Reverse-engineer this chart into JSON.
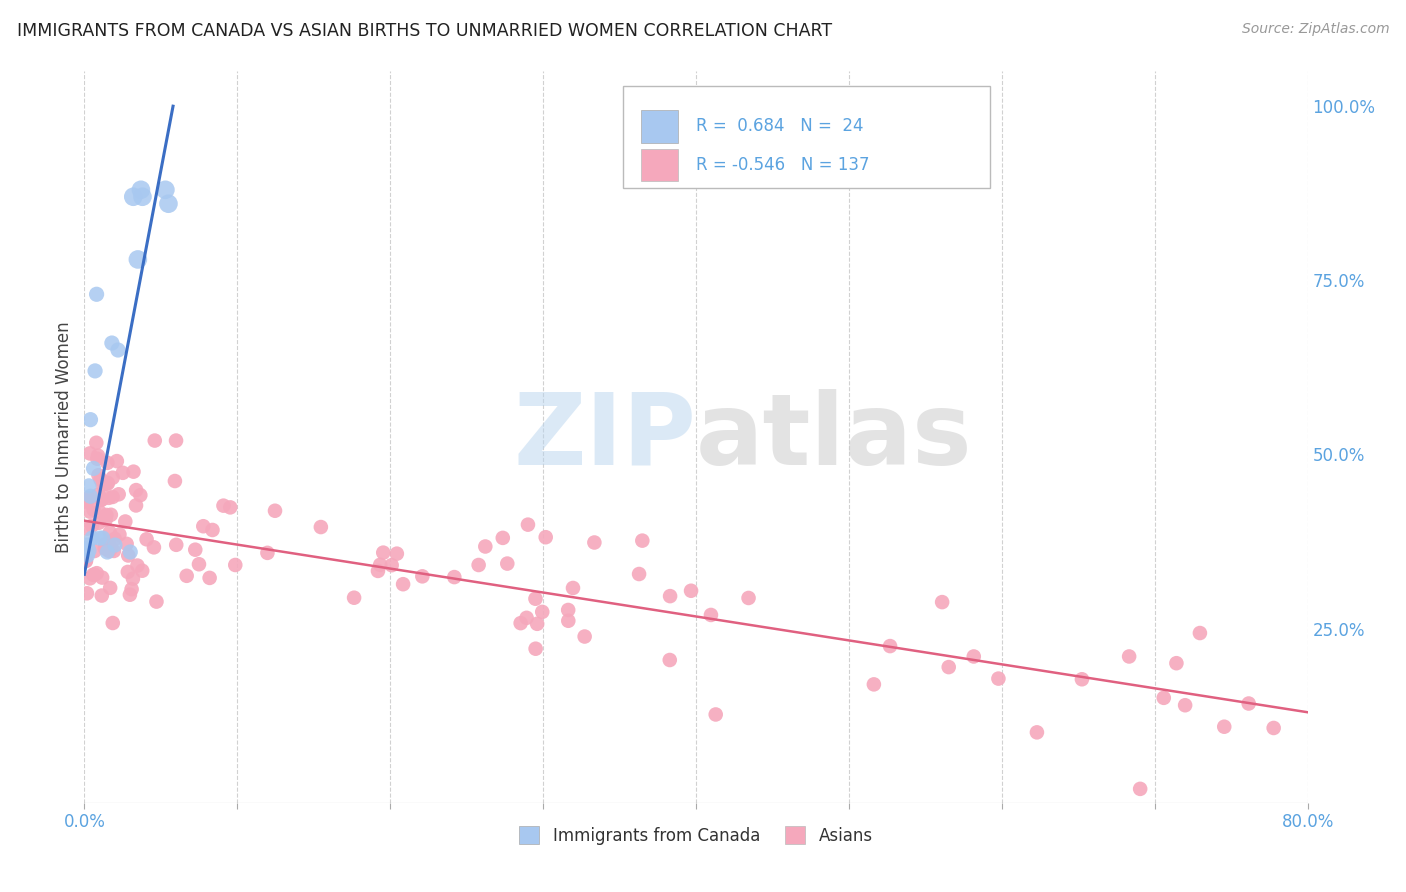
{
  "title": "IMMIGRANTS FROM CANADA VS ASIAN BIRTHS TO UNMARRIED WOMEN CORRELATION CHART",
  "source": "Source: ZipAtlas.com",
  "ylabel": "Births to Unmarried Women",
  "watermark": "ZIPatlas",
  "legend_blue_label": "Immigrants from Canada",
  "legend_pink_label": "Asians",
  "blue_R": 0.684,
  "blue_N": 24,
  "pink_R": -0.546,
  "pink_N": 137,
  "blue_color": "#A8C8F0",
  "pink_color": "#F5A8BC",
  "blue_line_color": "#3B6EC4",
  "pink_line_color": "#E06080",
  "background_color": "#FFFFFF",
  "grid_color": "#CCCCCC",
  "right_axis_color": "#5BA3E0",
  "blue_scatter_x": [
    0.001,
    0.002,
    0.002,
    0.003,
    0.003,
    0.004,
    0.004,
    0.005,
    0.006,
    0.007,
    0.008,
    0.01,
    0.012,
    0.015,
    0.018,
    0.02,
    0.022,
    0.03,
    0.032,
    0.035,
    0.037,
    0.038,
    0.053,
    0.055
  ],
  "blue_scatter_y": [
    0.365,
    0.37,
    0.355,
    0.362,
    0.455,
    0.55,
    0.44,
    0.38,
    0.48,
    0.62,
    0.73,
    0.38,
    0.38,
    0.36,
    0.66,
    0.37,
    0.65,
    0.36,
    0.87,
    0.78,
    0.88,
    0.87,
    0.88,
    0.86
  ],
  "blue_sizes": [
    80,
    80,
    80,
    80,
    80,
    80,
    80,
    80,
    80,
    80,
    80,
    80,
    80,
    80,
    80,
    80,
    80,
    80,
    120,
    120,
    120,
    120,
    120,
    120
  ],
  "xlim": [
    0.0,
    0.8
  ],
  "ylim": [
    0.0,
    1.05
  ],
  "blue_trendline_x": [
    0.0,
    0.058
  ],
  "blue_trendline_y": [
    0.328,
    1.0
  ],
  "pink_trendline_x": [
    0.0,
    0.8
  ],
  "pink_trendline_y": [
    0.405,
    0.13
  ]
}
